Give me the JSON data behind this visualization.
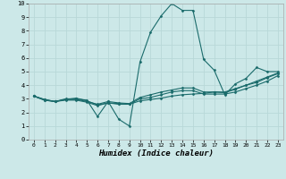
{
  "title": "",
  "xlabel": "Humidex (Indice chaleur)",
  "ylabel": "",
  "xlim": [
    -0.5,
    23.5
  ],
  "ylim": [
    0,
    10
  ],
  "xticks": [
    0,
    1,
    2,
    3,
    4,
    5,
    6,
    7,
    8,
    9,
    10,
    11,
    12,
    13,
    14,
    15,
    16,
    17,
    18,
    19,
    20,
    21,
    22,
    23
  ],
  "yticks": [
    0,
    1,
    2,
    3,
    4,
    5,
    6,
    7,
    8,
    9,
    10
  ],
  "background_color": "#cce8e8",
  "grid_color": "#b8d8d8",
  "line_color": "#1a6b6b",
  "series": [
    {
      "x": [
        0,
        1,
        2,
        3,
        4,
        5,
        6,
        7,
        8,
        9,
        10,
        11,
        12,
        13,
        14,
        15,
        16,
        17,
        18,
        19,
        20,
        21,
        22,
        23
      ],
      "y": [
        3.2,
        2.9,
        2.8,
        3.0,
        3.0,
        2.9,
        1.7,
        2.8,
        1.5,
        1.0,
        5.7,
        7.9,
        9.1,
        10.0,
        9.5,
        9.5,
        5.9,
        5.1,
        3.3,
        4.1,
        4.5,
        5.3,
        5.0,
        5.0
      ]
    },
    {
      "x": [
        0,
        1,
        2,
        3,
        4,
        5,
        6,
        7,
        8,
        9,
        10,
        11,
        12,
        13,
        14,
        15,
        16,
        17,
        18,
        19,
        20,
        21,
        22,
        23
      ],
      "y": [
        3.2,
        2.9,
        2.8,
        2.9,
        2.9,
        2.75,
        2.5,
        2.7,
        2.6,
        2.6,
        2.85,
        2.95,
        3.05,
        3.2,
        3.3,
        3.35,
        3.4,
        3.5,
        3.5,
        3.75,
        4.0,
        4.2,
        4.55,
        4.85
      ]
    },
    {
      "x": [
        0,
        1,
        2,
        3,
        4,
        5,
        6,
        7,
        8,
        9,
        10,
        11,
        12,
        13,
        14,
        15,
        16,
        17,
        18,
        19,
        20,
        21,
        22,
        23
      ],
      "y": [
        3.2,
        2.95,
        2.8,
        2.95,
        2.95,
        2.8,
        2.6,
        2.8,
        2.7,
        2.65,
        3.1,
        3.3,
        3.5,
        3.65,
        3.8,
        3.8,
        3.5,
        3.5,
        3.45,
        3.7,
        4.0,
        4.3,
        4.6,
        4.9
      ]
    },
    {
      "x": [
        0,
        1,
        2,
        3,
        4,
        5,
        6,
        7,
        8,
        9,
        10,
        11,
        12,
        13,
        14,
        15,
        16,
        17,
        18,
        19,
        20,
        21,
        22,
        23
      ],
      "y": [
        3.2,
        2.95,
        2.8,
        2.95,
        3.05,
        2.85,
        2.55,
        2.7,
        2.65,
        2.6,
        3.0,
        3.1,
        3.3,
        3.5,
        3.6,
        3.6,
        3.35,
        3.35,
        3.35,
        3.5,
        3.75,
        4.0,
        4.3,
        4.7
      ]
    }
  ]
}
